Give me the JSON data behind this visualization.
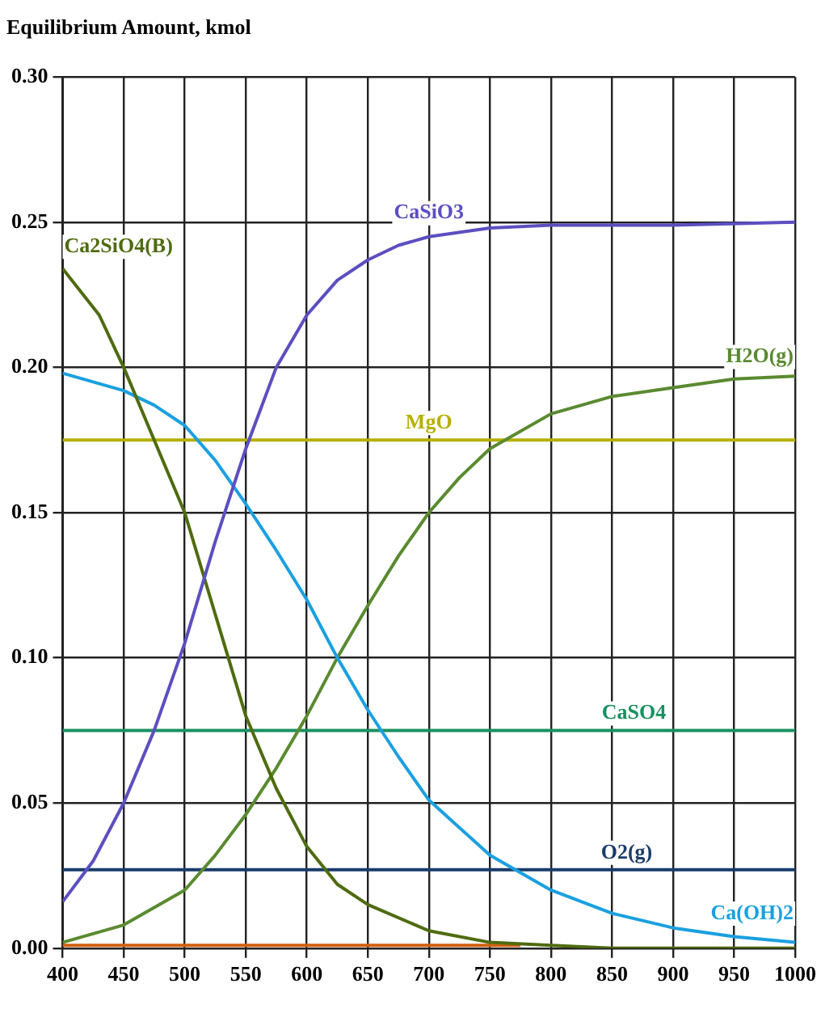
{
  "chart_data": {
    "type": "line",
    "ylabel": "Equilibrium Amount, kmol",
    "xlim": [
      400,
      1000
    ],
    "xticks": [
      400,
      450,
      500,
      550,
      600,
      650,
      700,
      750,
      800,
      850,
      900,
      950,
      1000
    ],
    "ylim": [
      0,
      0.3
    ],
    "yticks": [
      {
        "value": 0,
        "label": "0.00"
      },
      {
        "value": 0.05,
        "label": "0.05"
      },
      {
        "value": 0.1,
        "label": "0.10"
      },
      {
        "value": 0.15,
        "label": "0.15"
      },
      {
        "value": 0.2,
        "label": "0.20"
      },
      {
        "value": 0.25,
        "label": "0.25"
      },
      {
        "value": 0.3,
        "label": "0.30"
      }
    ],
    "grid": true,
    "legend": false,
    "marker": "none",
    "line_style": "solid",
    "series": [
      {
        "name": "CaSiO3",
        "color": "#5b4fc0",
        "x": [
          400,
          425,
          450,
          475,
          500,
          525,
          550,
          575,
          600,
          625,
          650,
          675,
          700,
          750,
          800,
          900,
          1000
        ],
        "values": [
          0.016,
          0.03,
          0.05,
          0.075,
          0.105,
          0.14,
          0.172,
          0.2,
          0.218,
          0.23,
          0.237,
          0.242,
          0.245,
          0.248,
          0.249,
          0.249,
          0.25
        ]
      },
      {
        "name": "Ca2SiO4(B)",
        "color": "#4f6b10",
        "x": [
          400,
          430,
          450,
          475,
          500,
          525,
          550,
          575,
          600,
          625,
          650,
          700,
          750,
          800,
          850,
          1000
        ],
        "values": [
          0.234,
          0.218,
          0.2,
          0.175,
          0.15,
          0.115,
          0.08,
          0.055,
          0.035,
          0.022,
          0.015,
          0.006,
          0.002,
          0.001,
          0,
          0
        ]
      },
      {
        "name": "Ca(OH)2",
        "color": "#1aa0e0",
        "x": [
          400,
          450,
          475,
          500,
          525,
          550,
          575,
          600,
          625,
          650,
          675,
          700,
          750,
          800,
          850,
          900,
          950,
          1000
        ],
        "values": [
          0.198,
          0.192,
          0.187,
          0.18,
          0.168,
          0.153,
          0.137,
          0.12,
          0.1,
          0.082,
          0.066,
          0.051,
          0.032,
          0.02,
          0.012,
          0.007,
          0.004,
          0.002
        ]
      },
      {
        "name": "H2O(g)",
        "color": "#5a8a30",
        "x": [
          400,
          450,
          500,
          525,
          550,
          575,
          600,
          625,
          650,
          675,
          700,
          725,
          750,
          800,
          850,
          900,
          950,
          1000
        ],
        "values": [
          0.002,
          0.008,
          0.02,
          0.032,
          0.046,
          0.062,
          0.08,
          0.1,
          0.118,
          0.135,
          0.15,
          0.162,
          0.172,
          0.184,
          0.19,
          0.193,
          0.196,
          0.197
        ]
      },
      {
        "name": "MgO",
        "color": "#b5b000",
        "x": [
          400,
          1000
        ],
        "values": [
          0.175,
          0.175
        ]
      },
      {
        "name": "CaSO4",
        "color": "#1a9060",
        "x": [
          400,
          1000
        ],
        "values": [
          0.075,
          0.075
        ]
      },
      {
        "name": "O2(g)",
        "color": "#1a3c6a",
        "x": [
          400,
          1000
        ],
        "values": [
          0.027,
          0.027
        ]
      },
      {
        "color": "#d06010",
        "x": [
          400,
          775
        ],
        "values": [
          0.001,
          0.001
        ]
      }
    ]
  }
}
